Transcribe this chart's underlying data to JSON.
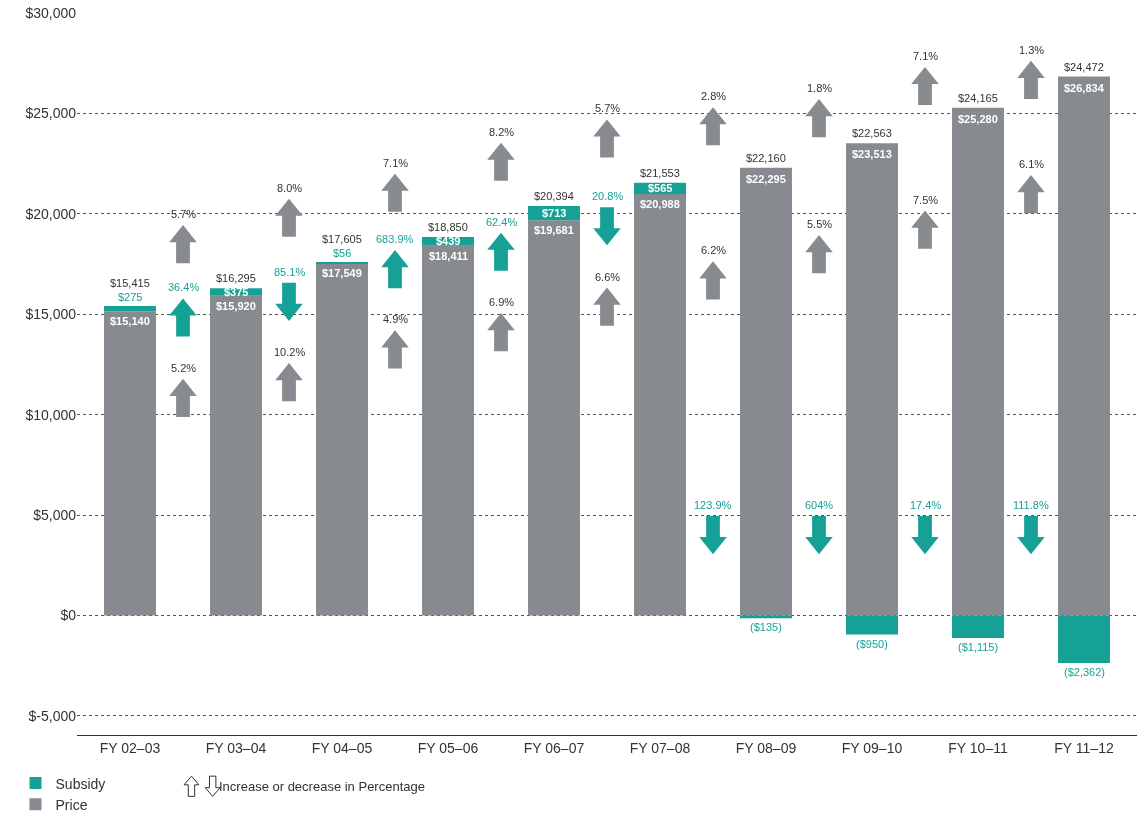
{
  "chart_data": {
    "type": "bar",
    "stacked": true,
    "categories": [
      "FY 02–03",
      "FY 03–04",
      "FY 04–05",
      "FY 05–06",
      "FY 06–07",
      "FY 07–08",
      "FY 08–09",
      "FY 09–10",
      "FY 10–11",
      "FY 11–12"
    ],
    "series": [
      {
        "name": "Price",
        "color": "#878a8f",
        "values": [
          15140,
          15920,
          17549,
          18411,
          19681,
          20988,
          22295,
          23513,
          25280,
          26834
        ],
        "value_labels": [
          "$15,140",
          "$15,920",
          "$17,549",
          "$18,411",
          "$19,681",
          "$20,988",
          "$22,295",
          "$23,513",
          "$25,280",
          "$26,834"
        ]
      },
      {
        "name": "Subsidy",
        "color": "#16a196",
        "values": [
          275,
          375,
          56,
          439,
          713,
          565,
          -135,
          -950,
          -1115,
          -2362
        ],
        "value_labels": [
          "$275",
          "$375",
          "$56",
          "$439",
          "$713",
          "$565",
          "($135)",
          "($950)",
          "($1,115)",
          "($2,362)"
        ]
      }
    ],
    "totals": [
      "$15,415",
      "$16,295",
      "$17,605",
      "$18,850",
      "$20,394",
      "$21,553",
      "$22,160",
      "$22,563",
      "$24,165",
      "$24,472"
    ],
    "ylim": [
      -5950,
      30000
    ],
    "yticks": [
      {
        "value": -5000,
        "label": "$-5,000"
      },
      {
        "value": 0,
        "label": "$0"
      },
      {
        "value": 5000,
        "label": "$5,000"
      },
      {
        "value": 10000,
        "label": "$10,000"
      },
      {
        "value": 15000,
        "label": "$15,000"
      },
      {
        "value": 20000,
        "label": "$20,000"
      },
      {
        "value": 25000,
        "label": "$25,000"
      },
      {
        "value": 30000,
        "label": "$30,000"
      }
    ],
    "grid": "y",
    "legend": "bottom left",
    "annotations": [
      "5.7%",
      "5.2%",
      "36.4%",
      "8.0%",
      "10.2%",
      "85.1%",
      "7.1%",
      "4.9%",
      "683.9%",
      "8.2%",
      "6.9%",
      "62.4%",
      "5.7%",
      "6.6%",
      "20.8%",
      "2.8%",
      "6.2%",
      "123.9%",
      "1.8%",
      "5.5%",
      "604%",
      "7.1%",
      "7.5%",
      "17.4%",
      "1.3%",
      "6.1%",
      "111.8%",
      "Increase or decrease in Percentage"
    ]
  }
}
